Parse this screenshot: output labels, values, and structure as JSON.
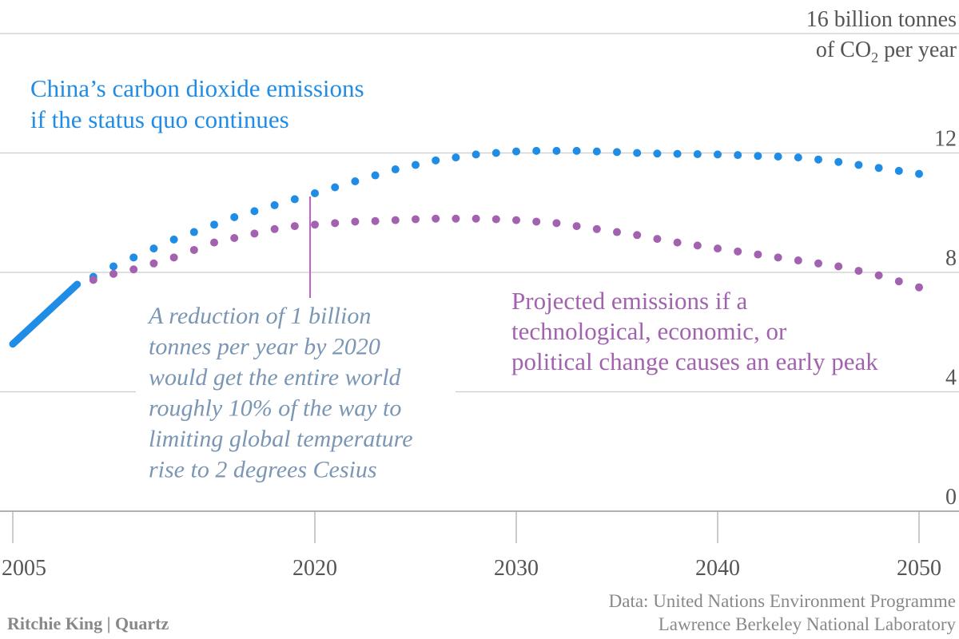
{
  "chart_data": {
    "type": "line",
    "x_unit": "year",
    "ylim": [
      0,
      16
    ],
    "xlim": [
      2005,
      2050
    ],
    "grid": true,
    "y_ticks": [
      {
        "value": 0,
        "label": "0"
      },
      {
        "value": 4,
        "label": "4"
      },
      {
        "value": 8,
        "label": "8"
      },
      {
        "value": 12,
        "label": "12"
      },
      {
        "value": 16,
        "label": "16 billion tonnes"
      }
    ],
    "ylabel_line2": "of CO",
    "ylabel_sub": "2",
    "ylabel_line2_end": " per year",
    "x_ticks": [
      {
        "value": 2005,
        "label": "2005"
      },
      {
        "value": 2020,
        "label": "2020"
      },
      {
        "value": 2030,
        "label": "2030"
      },
      {
        "value": 2040,
        "label": "2040"
      },
      {
        "value": 2050,
        "label": "2050"
      }
    ],
    "series": [
      {
        "name": "historical",
        "style": "solid",
        "color": "#1f8ce6",
        "x": [
          2005,
          2008.2
        ],
        "y": [
          5.6,
          7.6
        ]
      },
      {
        "name": "China’s carbon dioxide emissions if the status quo continues",
        "style": "dotted",
        "color": "#1f8ce6",
        "x": [
          2009,
          2010,
          2011,
          2012,
          2013,
          2014,
          2015,
          2016,
          2017,
          2018,
          2019,
          2020,
          2021,
          2022,
          2023,
          2024,
          2025,
          2026,
          2027,
          2028,
          2029,
          2030,
          2031,
          2032,
          2033,
          2034,
          2035,
          2036,
          2037,
          2038,
          2039,
          2040,
          2041,
          2042,
          2043,
          2044,
          2045,
          2046,
          2047,
          2048,
          2049,
          2050
        ],
        "y": [
          7.85,
          8.2,
          8.5,
          8.8,
          9.1,
          9.35,
          9.6,
          9.85,
          10.05,
          10.25,
          10.45,
          10.65,
          10.85,
          11.05,
          11.25,
          11.45,
          11.6,
          11.75,
          11.85,
          11.95,
          12.0,
          12.05,
          12.07,
          12.07,
          12.07,
          12.05,
          12.03,
          12.0,
          11.98,
          11.97,
          11.96,
          11.95,
          11.93,
          11.9,
          11.88,
          11.85,
          11.78,
          11.7,
          11.6,
          11.5,
          11.4,
          11.3
        ]
      },
      {
        "name": "Projected emissions if a technological, economic, or political change causes an early peak",
        "style": "dotted",
        "color": "#a262b0",
        "x": [
          2009,
          2010,
          2011,
          2012,
          2013,
          2014,
          2015,
          2016,
          2017,
          2018,
          2019,
          2020,
          2021,
          2022,
          2023,
          2024,
          2025,
          2026,
          2027,
          2028,
          2029,
          2030,
          2031,
          2032,
          2033,
          2034,
          2035,
          2036,
          2037,
          2038,
          2039,
          2040,
          2041,
          2042,
          2043,
          2044,
          2045,
          2046,
          2047,
          2048,
          2049,
          2050
        ],
        "y": [
          7.75,
          7.95,
          8.1,
          8.3,
          8.5,
          8.75,
          9.0,
          9.15,
          9.3,
          9.45,
          9.55,
          9.6,
          9.65,
          9.7,
          9.72,
          9.75,
          9.78,
          9.8,
          9.8,
          9.8,
          9.78,
          9.75,
          9.7,
          9.65,
          9.55,
          9.45,
          9.35,
          9.25,
          9.12,
          9.0,
          8.9,
          8.8,
          8.7,
          8.6,
          8.5,
          8.4,
          8.3,
          8.2,
          8.05,
          7.9,
          7.7,
          7.5
        ]
      }
    ],
    "annotations": {
      "blue_label": [
        "China’s carbon dioxide emissions",
        "if the status quo continues"
      ],
      "purple_label": [
        "Projected emissions if a",
        "technological, economic, or",
        "political change causes an early peak"
      ],
      "note": [
        "A reduction of 1 billion",
        "tonnes per year by 2020",
        "would get the entire world",
        "roughly 10% of the way to",
        "limiting global temperature",
        "rise to 2 degrees Cesius"
      ],
      "note_x": 2020
    }
  },
  "footer": {
    "credit": "Ritchie King | Quartz",
    "source_lines": [
      "Data: United Nations Environment Programme",
      "Lawrence Berkeley National Laboratory"
    ]
  },
  "colors": {
    "blue": "#1f8ce6",
    "purple": "#a262b0",
    "note": "#7a96b4",
    "grid": "#cccccc",
    "axis_text": "#555555",
    "footer_text": "#888888"
  }
}
